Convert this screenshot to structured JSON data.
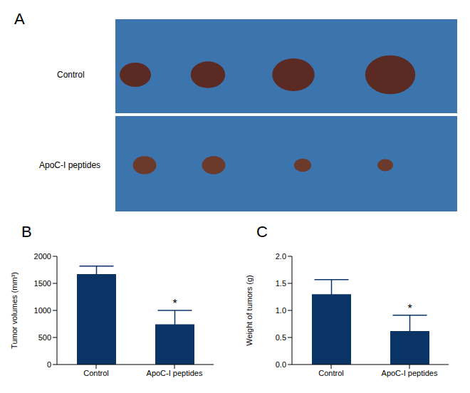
{
  "panel_a": {
    "label": "A",
    "rows": [
      "Control",
      "ApoC-I peptides"
    ]
  },
  "chart_data": [
    {
      "panel": "B",
      "type": "bar",
      "categories": [
        "Control",
        "ApoC-I peptides"
      ],
      "values": [
        1670,
        745
      ],
      "errors": [
        150,
        255
      ],
      "annotations": [
        null,
        "*"
      ],
      "y_label": "Tumor volumes (mm³)",
      "ylim": [
        0,
        2000
      ],
      "yticks": [
        0,
        500,
        1000,
        1500,
        2000
      ],
      "color": "#0b3466"
    },
    {
      "panel": "C",
      "type": "bar",
      "categories": [
        "Control",
        "ApoC-I peptides"
      ],
      "values": [
        1.3,
        0.62
      ],
      "errors": [
        0.27,
        0.29
      ],
      "annotations": [
        null,
        "*"
      ],
      "y_label": "Weight of tumors (g)",
      "ylim": [
        0,
        2
      ],
      "yticks": [
        {
          "value": 0,
          "label": "0.0"
        },
        {
          "value": 0.5,
          "label": "0.5"
        },
        {
          "value": 1,
          "label": "1.0"
        },
        {
          "value": 1.5,
          "label": "1.5"
        },
        {
          "value": 2,
          "label": "2.0"
        }
      ],
      "color": "#0b3466"
    }
  ]
}
